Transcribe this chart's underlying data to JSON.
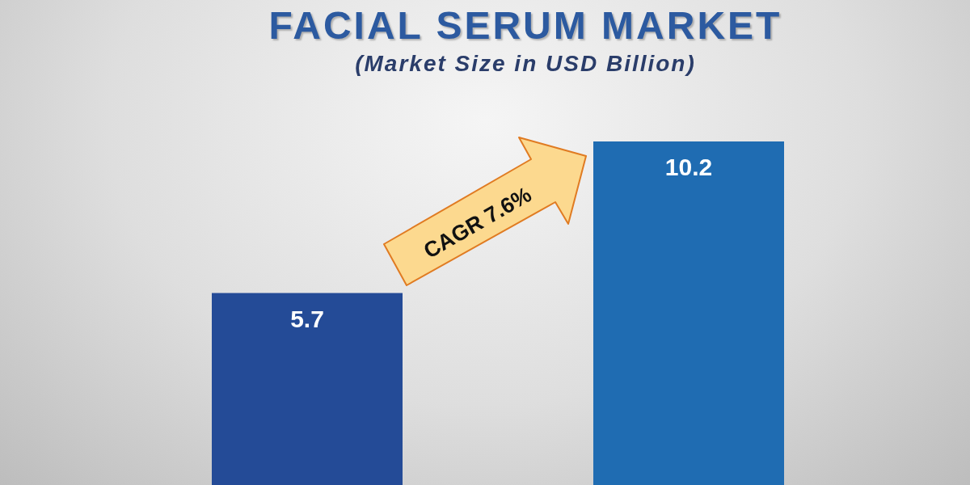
{
  "chart_data": {
    "type": "bar",
    "title": "FACIAL SERUM MARKET",
    "subtitle": "(Market Size in USD Billion)",
    "categories": [
      null,
      null
    ],
    "values": [
      5.7,
      10.2
    ],
    "colors": [
      "#244b97",
      "#1f6cb2"
    ],
    "data_labels": true,
    "annotations": [
      "CAGR 7.6%"
    ]
  }
}
